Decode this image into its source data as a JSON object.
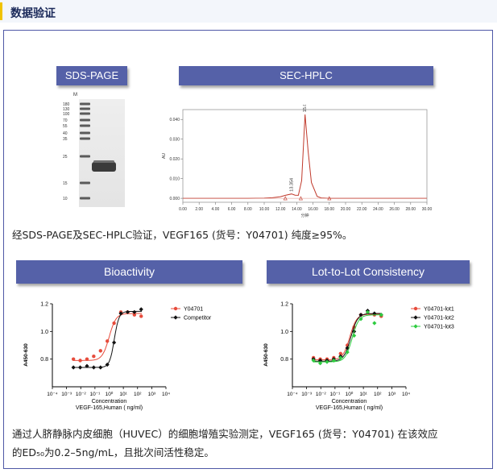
{
  "header": {
    "title": "数据验证",
    "accent": "#f0c300"
  },
  "colors": {
    "banner": "#5561a8",
    "border": "#4e58a6",
    "hplc_line": "#c0392b"
  },
  "banners": {
    "sds": "SDS-PAGE",
    "hplc": "SEC-HPLC",
    "bio": "Bioactivity",
    "lot": "Lot-to-Lot Consistency"
  },
  "gel": {
    "lane_label": "M",
    "markers": [
      "180",
      "130",
      "100",
      "70",
      "55",
      "40",
      "35",
      "25",
      "15",
      "10"
    ]
  },
  "caption1": "经SDS-PAGE及SEC-HPLC验证，VEGF165 (货号：Y04701) 纯度≥95%。",
  "caption2_line1": "通过人脐静脉内皮细胞（HUVEC）的细胞增殖实验测定，VEGF165 (货号：Y04701) 在该效应",
  "caption2_line2": "的ED₅₀为0.2–5ng/mL，且批次间活性稳定。",
  "chart_data": [
    {
      "type": "line",
      "name": "sec-hplc",
      "x": [
        0,
        2,
        4,
        6,
        8,
        10,
        11,
        12,
        12.6,
        13.354,
        13.8,
        14.2,
        14.6,
        15.021,
        15.4,
        15.8,
        16.5,
        17,
        18,
        20,
        24,
        28,
        30
      ],
      "y": [
        0,
        0,
        0,
        0,
        0,
        0.0001,
        0.0003,
        0.0008,
        0.0015,
        0.0022,
        0.0016,
        0.0015,
        0.009,
        0.0425,
        0.024,
        0.008,
        0.001,
        0.0002,
        0,
        0,
        0,
        0,
        0
      ],
      "peak_labels": [
        {
          "x": 13.354,
          "y": 0.0022,
          "text": "13.354"
        },
        {
          "x": 15.021,
          "y": 0.0425,
          "text": "15.021"
        }
      ],
      "xticks": [
        "0.00",
        "2.00",
        "4.00",
        "6.00",
        "8.00",
        "10.00",
        "12.00",
        "14.00",
        "16.00",
        "18.00",
        "20.00",
        "22.00",
        "24.00",
        "26.00",
        "28.00",
        "30.00"
      ],
      "yticks": [
        "0.000",
        "0.010",
        "0.020",
        "0.030",
        "0.040"
      ],
      "xlabel": "分钟",
      "ylabel": "AU",
      "xlim": [
        0,
        30
      ],
      "ylim": [
        -0.002,
        0.045
      ]
    },
    {
      "type": "scatter",
      "name": "bioactivity",
      "series": [
        {
          "name": "Y04701",
          "color": "#e74c3c",
          "marker": "circle",
          "x": [
            0.00305,
            0.00915,
            0.0274,
            0.082,
            0.247,
            0.74,
            2.22,
            6.67,
            20,
            60,
            180
          ],
          "y": [
            0.8,
            0.79,
            0.8,
            0.82,
            0.86,
            0.93,
            1.06,
            1.14,
            1.14,
            1.12,
            1.11
          ],
          "fit": {
            "bottom": 0.79,
            "top": 1.13,
            "ec50": 1.0,
            "hill": 1.8
          }
        },
        {
          "name": "Competitor",
          "color": "#111111",
          "marker": "diamond",
          "x": [
            0.00305,
            0.00915,
            0.0274,
            0.082,
            0.247,
            0.74,
            2.22,
            6.67,
            20,
            60,
            180
          ],
          "y": [
            0.74,
            0.74,
            0.75,
            0.74,
            0.74,
            0.76,
            0.92,
            1.13,
            1.14,
            1.14,
            1.16
          ],
          "fit": {
            "bottom": 0.74,
            "top": 1.145,
            "ec50": 2.3,
            "hill": 2.6
          }
        }
      ],
      "xlabel": "Concentration",
      "xlabel2": "VEGF-165,Human ( ng/ml)",
      "ylabel": "A450-630",
      "xticks": [
        "10⁻⁴",
        "10⁻³",
        "10⁻²",
        "10⁻¹",
        "10⁰",
        "10¹",
        "10²",
        "10³",
        "10⁴"
      ],
      "yticks": [
        "0.8",
        "1.0",
        "1.2"
      ],
      "xlim": [
        0.0001,
        10000
      ],
      "ylim": [
        0.6,
        1.2
      ],
      "legend": "top-right"
    },
    {
      "type": "scatter",
      "name": "lot-to-lot",
      "series": [
        {
          "name": "Y04701-lot1",
          "color": "#e74c3c",
          "marker": "circle",
          "x": [
            0.00305,
            0.00915,
            0.0274,
            0.082,
            0.247,
            0.74,
            2.22,
            6.67,
            20,
            60,
            180
          ],
          "y": [
            0.81,
            0.8,
            0.8,
            0.81,
            0.84,
            0.9,
            1.03,
            1.12,
            1.14,
            1.12,
            1.11
          ],
          "fit": {
            "bottom": 0.795,
            "top": 1.125,
            "ec50": 1.1,
            "hill": 1.8
          }
        },
        {
          "name": "Y04701-lot2",
          "color": "#111111",
          "marker": "diamond",
          "x": [
            0.00305,
            0.00915,
            0.0274,
            0.082,
            0.247,
            0.74,
            2.22,
            6.67,
            20,
            60,
            180
          ],
          "y": [
            0.8,
            0.79,
            0.79,
            0.8,
            0.82,
            0.88,
            1.0,
            1.12,
            1.15,
            1.13,
            1.12
          ],
          "fit": {
            "bottom": 0.785,
            "top": 1.13,
            "ec50": 1.3,
            "hill": 1.8
          }
        },
        {
          "name": "Y04701-lot3",
          "color": "#2ecc40",
          "marker": "diamond",
          "x": [
            0.00305,
            0.00915,
            0.0274,
            0.082,
            0.247,
            0.74,
            2.22,
            6.67,
            20,
            60,
            180
          ],
          "y": [
            0.79,
            0.77,
            0.78,
            0.79,
            0.81,
            0.85,
            0.97,
            1.09,
            1.14,
            1.06,
            1.12
          ],
          "fit": {
            "bottom": 0.78,
            "top": 1.12,
            "ec50": 1.6,
            "hill": 1.8
          }
        }
      ],
      "xlabel": "Concentration",
      "xlabel2": "VEGF-165,Human ( ng/ml)",
      "ylabel": "A450-630",
      "xticks": [
        "10⁻⁴",
        "10⁻³",
        "10⁻²",
        "10⁻¹",
        "10⁰",
        "10¹",
        "10²",
        "10³",
        "10⁴"
      ],
      "yticks": [
        "0.8",
        "1.0",
        "1.2"
      ],
      "xlim": [
        0.0001,
        10000
      ],
      "ylim": [
        0.6,
        1.2
      ],
      "legend": "top-right"
    }
  ]
}
